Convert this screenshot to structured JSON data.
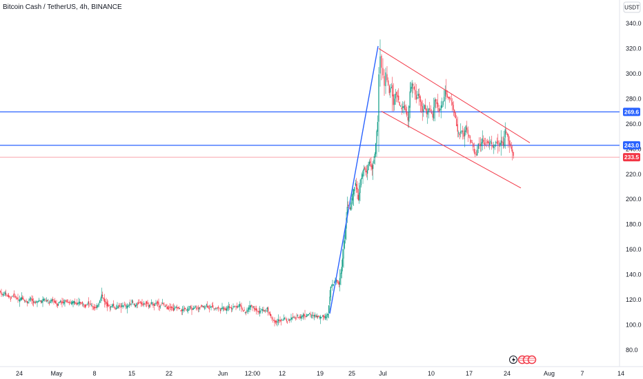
{
  "header": {
    "symbol_title": "Bitcoin Cash / TetherUS, 4h, BINANCE",
    "currency_button": "USDT"
  },
  "chart_data": {
    "type": "candlestick",
    "title": "Bitcoin Cash / TetherUS, 4h, BINANCE",
    "ylim": [
      75,
      345
    ],
    "y_ticks": [
      "340.0",
      "320.0",
      "300.0",
      "280.0",
      "260.0",
      "240.0",
      "220.0",
      "200.0",
      "180.0",
      "160.0",
      "140.0",
      "120.0",
      "100.0",
      "80.0"
    ],
    "y_tick_values": [
      340,
      320,
      300,
      280,
      260,
      240,
      220,
      200,
      180,
      160,
      140,
      120,
      100,
      80
    ],
    "x_ticks": [
      "24",
      "May",
      "8",
      "15",
      "22",
      "Jun",
      "12:00",
      "12",
      "19",
      "25",
      "Jul",
      "10",
      "17",
      "24",
      "Aug",
      "7",
      "14"
    ],
    "grid": false,
    "horizontal_lines": [
      {
        "label": "269.6",
        "value": 269.6,
        "color": "#2962ff"
      },
      {
        "label": "243.0",
        "value": 243.0,
        "color": "#2962ff"
      }
    ],
    "last_price": {
      "label": "233.5",
      "value": 233.5,
      "color": "#f23645"
    },
    "price_path": [
      [
        0,
        127
      ],
      [
        4,
        124
      ],
      [
        8,
        125
      ],
      [
        12,
        123
      ],
      [
        16,
        121
      ],
      [
        20,
        124
      ],
      [
        24,
        122
      ],
      [
        28,
        119
      ],
      [
        32,
        122
      ],
      [
        36,
        120
      ],
      [
        40,
        118
      ],
      [
        44,
        121
      ],
      [
        48,
        119
      ],
      [
        52,
        117
      ],
      [
        56,
        120
      ],
      [
        60,
        118
      ],
      [
        64,
        121
      ],
      [
        68,
        119
      ],
      [
        72,
        117
      ],
      [
        76,
        120
      ],
      [
        80,
        118
      ],
      [
        84,
        116
      ],
      [
        88,
        119
      ],
      [
        92,
        117
      ],
      [
        96,
        120
      ],
      [
        100,
        118
      ],
      [
        104,
        117
      ],
      [
        108,
        119
      ],
      [
        112,
        116
      ],
      [
        116,
        118
      ],
      [
        120,
        117
      ],
      [
        124,
        115
      ],
      [
        128,
        118
      ],
      [
        132,
        116
      ],
      [
        136,
        114
      ],
      [
        140,
        113
      ],
      [
        144,
        118
      ],
      [
        148,
        124
      ],
      [
        152,
        119
      ],
      [
        156,
        116
      ],
      [
        160,
        114
      ],
      [
        164,
        116
      ],
      [
        168,
        113
      ],
      [
        172,
        115
      ],
      [
        176,
        114
      ],
      [
        180,
        116
      ],
      [
        184,
        114
      ],
      [
        188,
        116
      ],
      [
        192,
        119
      ],
      [
        196,
        115
      ],
      [
        200,
        117
      ],
      [
        204,
        118
      ],
      [
        208,
        116
      ],
      [
        212,
        118
      ],
      [
        216,
        115
      ],
      [
        220,
        117
      ],
      [
        224,
        116
      ],
      [
        228,
        118
      ],
      [
        232,
        115
      ],
      [
        236,
        117
      ],
      [
        240,
        115
      ],
      [
        244,
        113
      ],
      [
        248,
        115
      ],
      [
        252,
        112
      ],
      [
        256,
        114
      ],
      [
        260,
        113
      ],
      [
        264,
        111
      ],
      [
        268,
        113
      ],
      [
        272,
        112
      ],
      [
        276,
        114
      ],
      [
        280,
        112
      ],
      [
        284,
        114
      ],
      [
        288,
        113
      ],
      [
        292,
        115
      ],
      [
        296,
        114
      ],
      [
        300,
        116
      ],
      [
        304,
        113
      ],
      [
        308,
        115
      ],
      [
        312,
        113
      ],
      [
        316,
        114
      ],
      [
        320,
        112
      ],
      [
        324,
        114
      ],
      [
        328,
        112
      ],
      [
        332,
        115
      ],
      [
        336,
        113
      ],
      [
        340,
        115
      ],
      [
        344,
        114
      ],
      [
        348,
        116
      ],
      [
        352,
        112
      ],
      [
        356,
        110
      ],
      [
        360,
        112
      ],
      [
        364,
        116
      ],
      [
        368,
        114
      ],
      [
        372,
        112
      ],
      [
        376,
        110
      ],
      [
        380,
        112
      ],
      [
        384,
        111
      ],
      [
        388,
        113
      ],
      [
        392,
        108
      ],
      [
        396,
        104
      ],
      [
        400,
        102
      ],
      [
        404,
        104
      ],
      [
        408,
        103
      ],
      [
        412,
        105
      ],
      [
        416,
        103
      ],
      [
        420,
        104
      ],
      [
        424,
        106
      ],
      [
        428,
        105
      ],
      [
        432,
        107
      ],
      [
        436,
        106
      ],
      [
        440,
        108
      ],
      [
        444,
        107
      ],
      [
        448,
        109
      ],
      [
        452,
        107
      ],
      [
        456,
        108
      ],
      [
        460,
        107
      ],
      [
        464,
        106
      ],
      [
        468,
        107
      ],
      [
        472,
        106
      ],
      [
        476,
        109
      ],
      [
        480,
        130
      ],
      [
        484,
        133
      ],
      [
        488,
        136
      ],
      [
        492,
        132
      ],
      [
        496,
        146
      ],
      [
        500,
        168
      ],
      [
        504,
        195
      ],
      [
        508,
        192
      ],
      [
        512,
        204
      ],
      [
        516,
        213
      ],
      [
        520,
        200
      ],
      [
        524,
        216
      ],
      [
        528,
        225
      ],
      [
        532,
        221
      ],
      [
        536,
        230
      ],
      [
        540,
        224
      ],
      [
        544,
        236
      ],
      [
        548,
        262
      ],
      [
        550,
        300
      ],
      [
        552,
        314
      ],
      [
        554,
        305
      ],
      [
        556,
        298
      ],
      [
        558,
        290
      ],
      [
        560,
        300
      ],
      [
        562,
        295
      ],
      [
        565,
        285
      ],
      [
        568,
        290
      ],
      [
        571,
        275
      ],
      [
        574,
        285
      ],
      [
        577,
        282
      ],
      [
        580,
        275
      ],
      [
        583,
        272
      ],
      [
        586,
        275
      ],
      [
        589,
        270
      ],
      [
        592,
        262
      ],
      [
        595,
        285
      ],
      [
        598,
        292
      ],
      [
        601,
        288
      ],
      [
        604,
        280
      ],
      [
        607,
        284
      ],
      [
        610,
        278
      ],
      [
        613,
        270
      ],
      [
        616,
        275
      ],
      [
        619,
        268
      ],
      [
        622,
        272
      ],
      [
        625,
        270
      ],
      [
        628,
        265
      ],
      [
        631,
        280
      ],
      [
        634,
        276
      ],
      [
        637,
        270
      ],
      [
        640,
        274
      ],
      [
        643,
        278
      ],
      [
        646,
        286
      ],
      [
        649,
        282
      ],
      [
        652,
        280
      ],
      [
        655,
        278
      ],
      [
        658,
        272
      ],
      [
        661,
        265
      ],
      [
        664,
        253
      ],
      [
        667,
        252
      ],
      [
        670,
        255
      ],
      [
        673,
        250
      ],
      [
        676,
        258
      ],
      [
        679,
        252
      ],
      [
        682,
        248
      ],
      [
        685,
        244
      ],
      [
        688,
        238
      ],
      [
        691,
        235
      ],
      [
        694,
        245
      ],
      [
        697,
        243
      ],
      [
        700,
        248
      ],
      [
        703,
        244
      ],
      [
        706,
        246
      ],
      [
        709,
        244
      ],
      [
        712,
        246
      ],
      [
        715,
        241
      ],
      [
        718,
        244
      ],
      [
        721,
        246
      ],
      [
        724,
        242
      ],
      [
        727,
        246
      ],
      [
        730,
        243
      ],
      [
        733,
        255
      ],
      [
        736,
        251
      ],
      [
        739,
        244
      ],
      [
        742,
        240
      ],
      [
        745,
        234
      ]
    ],
    "trendlines": [
      {
        "from": [
          478,
          109
        ],
        "to": [
          548,
          322
        ],
        "color": "#2962ff"
      },
      {
        "from": [
          549,
          320
        ],
        "to": [
          768,
          245
        ],
        "color": "#f23645"
      },
      {
        "from": [
          553,
          270
        ],
        "to": [
          755,
          209
        ],
        "color": "#f23645"
      }
    ]
  }
}
